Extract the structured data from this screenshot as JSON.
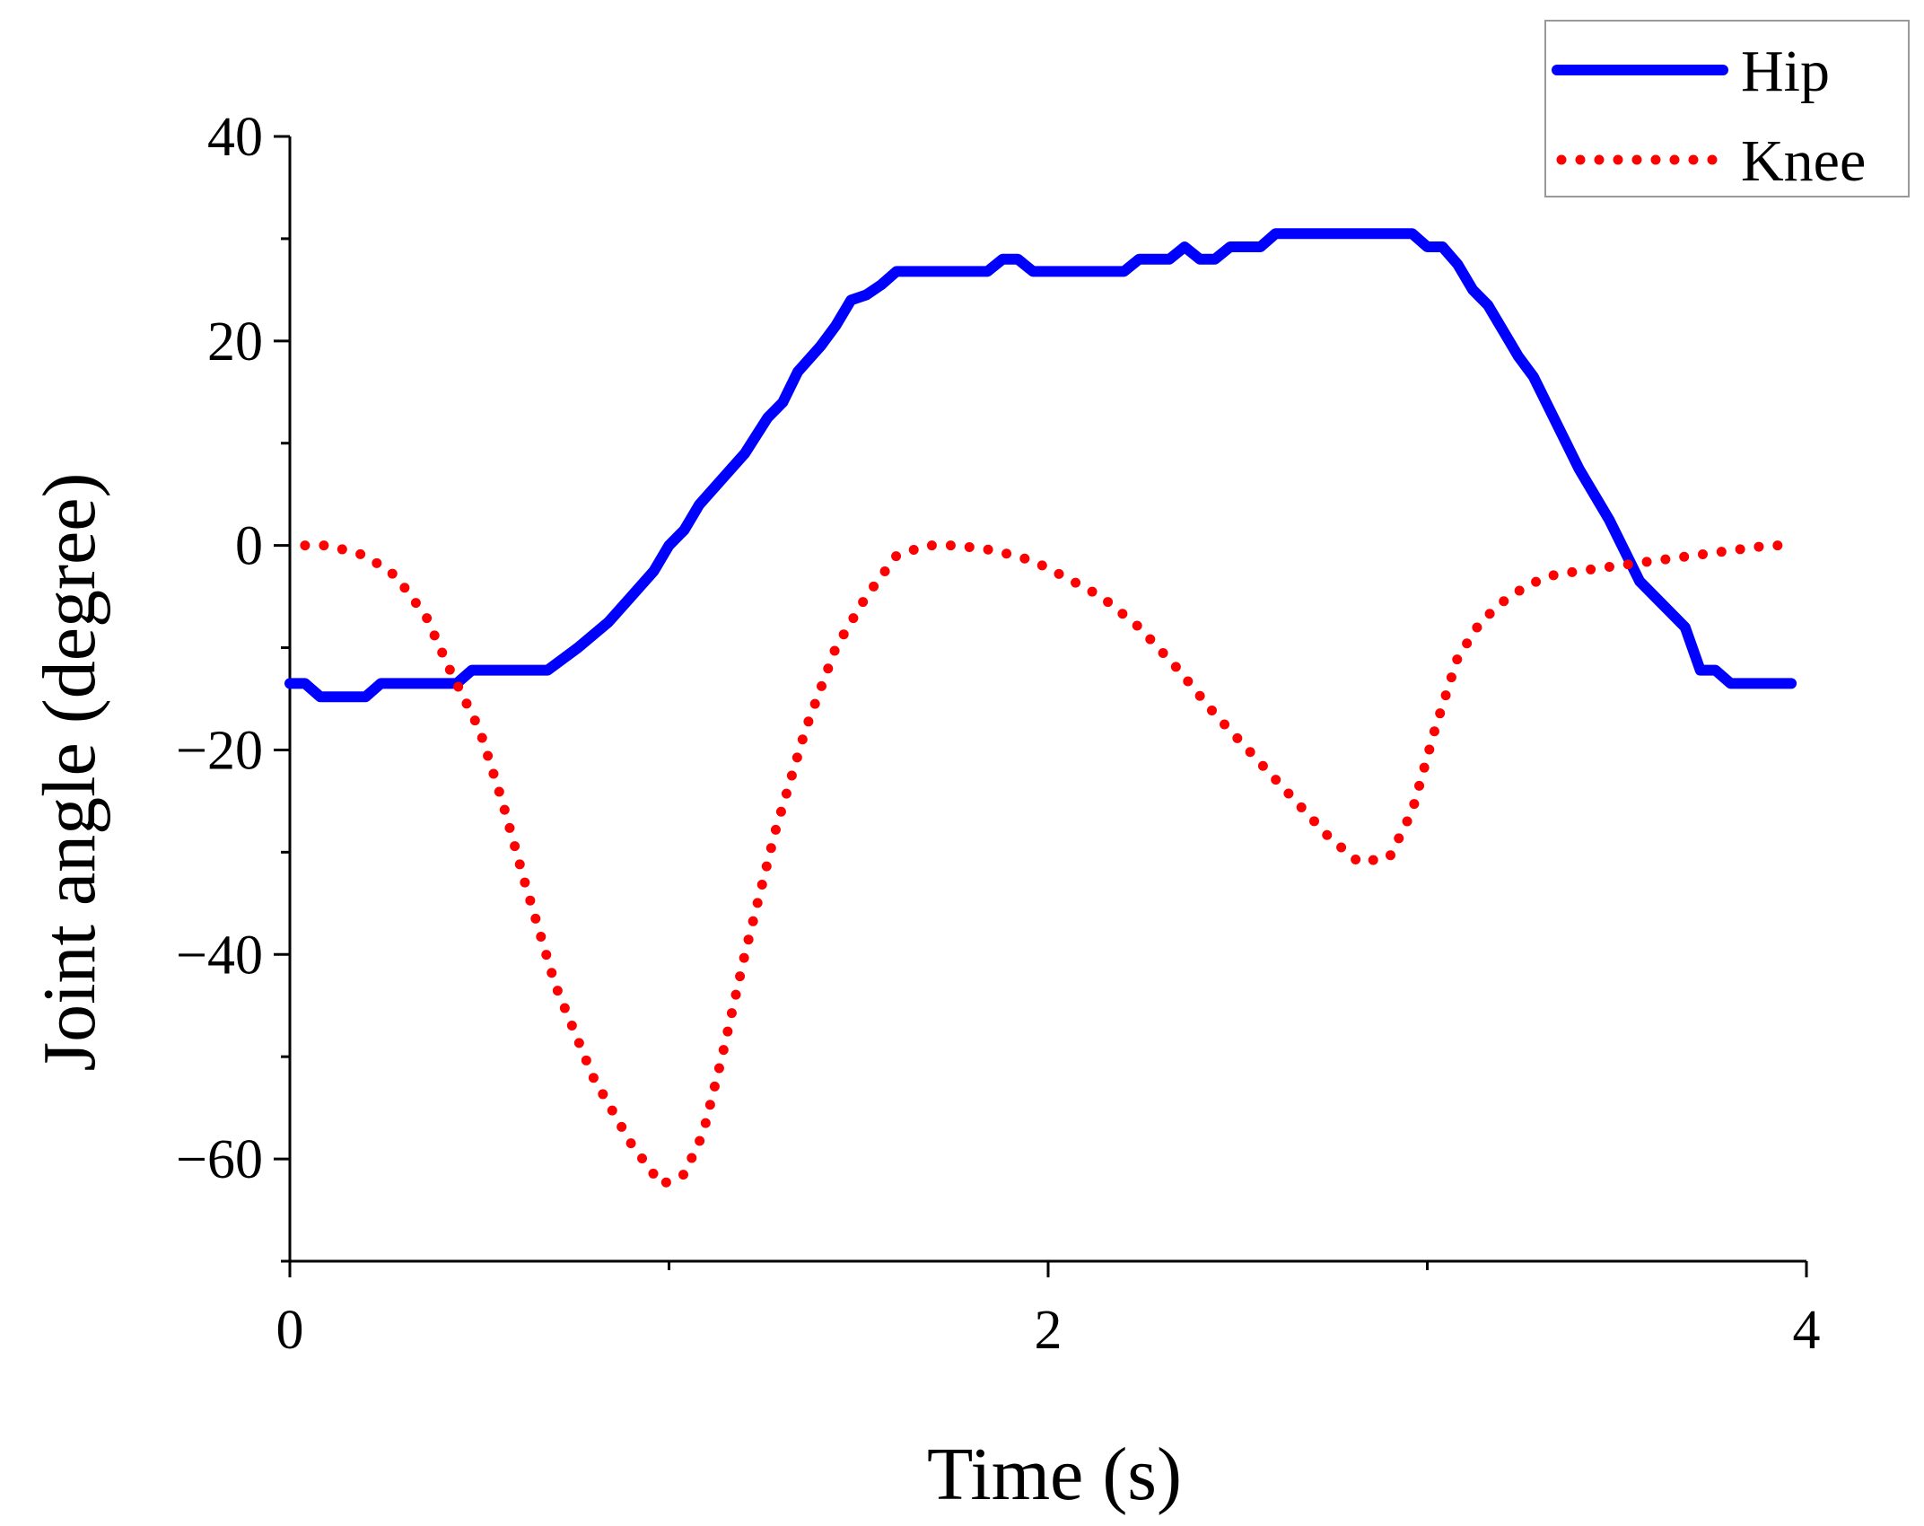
{
  "chart_data": {
    "type": "line",
    "title": "",
    "xlabel": "Time (s)",
    "ylabel": "Joint angle (degree)",
    "xlim": [
      0,
      4
    ],
    "ylim": [
      -70,
      40
    ],
    "xticks": [
      0,
      2,
      4
    ],
    "xtick_labels": [
      "0",
      "2",
      "4"
    ],
    "xminor": [
      1,
      3
    ],
    "yticks": [
      40,
      20,
      0,
      -20,
      -40,
      -60
    ],
    "ytick_labels": [
      "40",
      "20",
      "0",
      "−20",
      "−40",
      "−60"
    ],
    "yminor": [
      30,
      10,
      -10,
      -30,
      -50,
      -70
    ],
    "grid": false,
    "legend_position": "top-right",
    "series": [
      {
        "name": "Hip",
        "color": "#0000ff",
        "style": "solid",
        "x": [
          0.0,
          0.04,
          0.08,
          0.2,
          0.24,
          0.28,
          0.44,
          0.48,
          0.64,
          0.68,
          0.76,
          0.84,
          0.9,
          0.96,
          1.0,
          1.04,
          1.08,
          1.14,
          1.2,
          1.26,
          1.3,
          1.34,
          1.4,
          1.44,
          1.48,
          1.52,
          1.56,
          1.6,
          1.64,
          1.72,
          1.76,
          1.84,
          1.88,
          1.92,
          1.96,
          2.0,
          2.04,
          2.08,
          2.12,
          2.16,
          2.2,
          2.24,
          2.28,
          2.32,
          2.36,
          2.4,
          2.44,
          2.48,
          2.52,
          2.56,
          2.6,
          2.64,
          2.68,
          2.72,
          2.76,
          2.8,
          2.84,
          2.88,
          2.92,
          2.96,
          3.0,
          3.04,
          3.08,
          3.12,
          3.16,
          3.2,
          3.24,
          3.28,
          3.32,
          3.36,
          3.4,
          3.44,
          3.48,
          3.52,
          3.56,
          3.6,
          3.64,
          3.68,
          3.72,
          3.76,
          3.8,
          3.84,
          3.88,
          3.92,
          3.96
        ],
        "y": [
          -13.5,
          -13.5,
          -14.8,
          -14.8,
          -13.5,
          -13.5,
          -13.5,
          -12.2,
          -12.2,
          -12.2,
          -10.0,
          -7.5,
          -5.0,
          -2.5,
          0,
          1.5,
          4.0,
          6.5,
          9.0,
          12.5,
          14.0,
          17.0,
          19.5,
          21.5,
          24.0,
          24.5,
          25.5,
          26.8,
          26.8,
          26.8,
          26.8,
          26.8,
          28.0,
          28.0,
          26.8,
          26.8,
          26.8,
          26.8,
          26.8,
          26.8,
          26.8,
          28.0,
          28.0,
          28.0,
          29.2,
          28.0,
          28.0,
          29.2,
          29.2,
          29.2,
          30.5,
          30.5,
          30.5,
          30.5,
          30.5,
          30.5,
          30.5,
          30.5,
          30.5,
          30.5,
          29.2,
          29.2,
          27.5,
          25.0,
          23.5,
          21.0,
          18.5,
          16.5,
          13.5,
          10.5,
          7.5,
          5.0,
          2.5,
          -0.5,
          -3.5,
          -5.0,
          -6.5,
          -8.0,
          -12.2,
          -12.2,
          -13.5,
          -13.5,
          -13.5,
          -13.5,
          -13.5
        ]
      },
      {
        "name": "Knee",
        "color": "#ff0000",
        "style": "dotted",
        "x": [
          0.04,
          0.1,
          0.2,
          0.28,
          0.36,
          0.42,
          0.5,
          0.56,
          0.62,
          0.7,
          0.8,
          0.9,
          0.98,
          1.04,
          1.09,
          1.14,
          1.2,
          1.28,
          1.36,
          1.44,
          1.52,
          1.6,
          1.68,
          1.76,
          1.86,
          1.96,
          2.04,
          2.14,
          2.24,
          2.34,
          2.44,
          2.54,
          2.64,
          2.74,
          2.82,
          2.9,
          2.96,
          3.02,
          3.08,
          3.14,
          3.2,
          3.26,
          3.32,
          3.4,
          3.5,
          3.6,
          3.7,
          3.8,
          3.9,
          3.96
        ],
        "y": [
          0,
          0,
          -1.0,
          -3.0,
          -7.0,
          -12.0,
          -18.0,
          -25.0,
          -33.0,
          -43.0,
          -52.0,
          -58.5,
          -62.5,
          -61.5,
          -57.5,
          -50.0,
          -40.0,
          -28.0,
          -18.0,
          -10.0,
          -5.0,
          -1.0,
          0,
          0,
          -0.5,
          -1.5,
          -3.0,
          -5.0,
          -8.0,
          -12.0,
          -16.5,
          -20.5,
          -24.5,
          -28.5,
          -31.0,
          -30.5,
          -26.0,
          -18.0,
          -11.0,
          -7.5,
          -5.5,
          -4.0,
          -3.0,
          -2.5,
          -2.0,
          -1.5,
          -1.0,
          -0.5,
          0,
          0
        ]
      }
    ]
  }
}
